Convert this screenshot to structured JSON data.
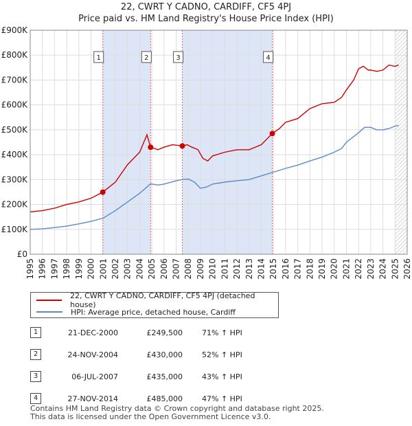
{
  "chart_data": {
    "type": "line",
    "title": "22, CWRT Y CADNO, CARDIFF, CF5 4PJ",
    "subtitle": "Price paid vs. HM Land Registry's House Price Index (HPI)",
    "xlim": [
      1995,
      2026
    ],
    "ylim": [
      0,
      900000
    ],
    "x_ticks": [
      "1995",
      "1996",
      "1997",
      "1998",
      "1999",
      "2000",
      "2001",
      "2002",
      "2003",
      "2004",
      "2005",
      "2006",
      "2007",
      "2008",
      "2009",
      "2010",
      "2011",
      "2012",
      "2013",
      "2014",
      "2015",
      "2016",
      "2017",
      "2018",
      "2019",
      "2020",
      "2021",
      "2022",
      "2023",
      "2024",
      "2025",
      "2026"
    ],
    "y_ticks": [
      {
        "value": 0,
        "label": "£0"
      },
      {
        "value": 100000,
        "label": "£100K"
      },
      {
        "value": 200000,
        "label": "£200K"
      },
      {
        "value": 300000,
        "label": "£300K"
      },
      {
        "value": 400000,
        "label": "£400K"
      },
      {
        "value": 500000,
        "label": "£500K"
      },
      {
        "value": 600000,
        "label": "£600K"
      },
      {
        "value": 700000,
        "label": "£700K"
      },
      {
        "value": 800000,
        "label": "£800K"
      },
      {
        "value": 900000,
        "label": "£900K"
      }
    ],
    "series": [
      {
        "name": "22, CWRT Y CADNO, CARDIFF, CF5 4PJ (detached house)",
        "color": "#cc0000",
        "x": [
          1995,
          1996,
          1997,
          1998,
          1999,
          2000,
          2000.97,
          2002,
          2003,
          2004,
          2004.6,
          2004.9,
          2005.5,
          2006,
          2006.7,
          2007.51,
          2007.9,
          2008.3,
          2008.8,
          2009.2,
          2009.6,
          2010,
          2011,
          2012,
          2013,
          2014,
          2014.91,
          2015.5,
          2016,
          2017,
          2018,
          2019,
          2020,
          2020.6,
          2021,
          2021.6,
          2022,
          2022.4,
          2022.8,
          2023,
          2023.5,
          2024,
          2024.5,
          2025,
          2025.3
        ],
        "y": [
          170000,
          175000,
          185000,
          200000,
          210000,
          225000,
          249500,
          290000,
          360000,
          410000,
          480000,
          430000,
          420000,
          430000,
          440000,
          435000,
          440000,
          430000,
          420000,
          385000,
          375000,
          395000,
          410000,
          420000,
          420000,
          440000,
          485000,
          505000,
          530000,
          545000,
          585000,
          605000,
          610000,
          630000,
          660000,
          700000,
          745000,
          755000,
          740000,
          740000,
          735000,
          740000,
          760000,
          755000,
          760000
        ]
      },
      {
        "name": "HPI: Average price, detached house, Cardiff",
        "color": "#5b8ac4",
        "x": [
          1995,
          1996,
          1997,
          1998,
          1999,
          2000,
          2001,
          2002,
          2003,
          2004,
          2004.9,
          2005.5,
          2006,
          2007,
          2007.5,
          2008,
          2008.5,
          2009,
          2009.5,
          2010,
          2011,
          2012,
          2013,
          2014,
          2015,
          2016,
          2017,
          2018,
          2019,
          2020,
          2020.6,
          2021,
          2022,
          2022.5,
          2023,
          2023.5,
          2024,
          2024.5,
          2025,
          2025.3
        ],
        "y": [
          100000,
          102000,
          107000,
          113000,
          122000,
          132000,
          145000,
          175000,
          210000,
          245000,
          283000,
          278000,
          282000,
          295000,
          300000,
          302000,
          290000,
          265000,
          270000,
          282000,
          290000,
          295000,
          300000,
          315000,
          330000,
          345000,
          358000,
          375000,
          390000,
          410000,
          425000,
          450000,
          488000,
          510000,
          510000,
          500000,
          500000,
          505000,
          515000,
          518000
        ]
      }
    ],
    "sales": [
      {
        "num": "1",
        "date": "21-DEC-2000",
        "price": "£249,500",
        "hpi": "71% ↑ HPI",
        "x": 2000.97,
        "value": 249500
      },
      {
        "num": "2",
        "date": "24-NOV-2004",
        "price": "£430,000",
        "hpi": "52% ↑ HPI",
        "x": 2004.9,
        "value": 430000
      },
      {
        "num": "3",
        "date": "06-JUL-2007",
        "price": "£435,000",
        "hpi": "43% ↑ HPI",
        "x": 2007.51,
        "value": 435000
      },
      {
        "num": "4",
        "date": "27-NOV-2014",
        "price": "£485,000",
        "hpi": "47% ↑ HPI",
        "x": 2014.91,
        "value": 485000
      }
    ],
    "shaded_periods": [
      [
        2000.97,
        2004.9
      ],
      [
        2007.51,
        2014.91
      ]
    ],
    "hatched_from": 2025.0
  },
  "legend": {
    "property_label": "22, CWRT Y CADNO, CARDIFF, CF5 4PJ (detached house)",
    "hpi_label": "HPI: Average price, detached house, Cardiff",
    "property_color": "#cc0000",
    "hpi_color": "#5b8ac4"
  },
  "footer": {
    "line1": "Contains HM Land Registry data © Crown copyright and database right 2025.",
    "line2": "This data is licensed under the Open Government Licence v3.0."
  }
}
